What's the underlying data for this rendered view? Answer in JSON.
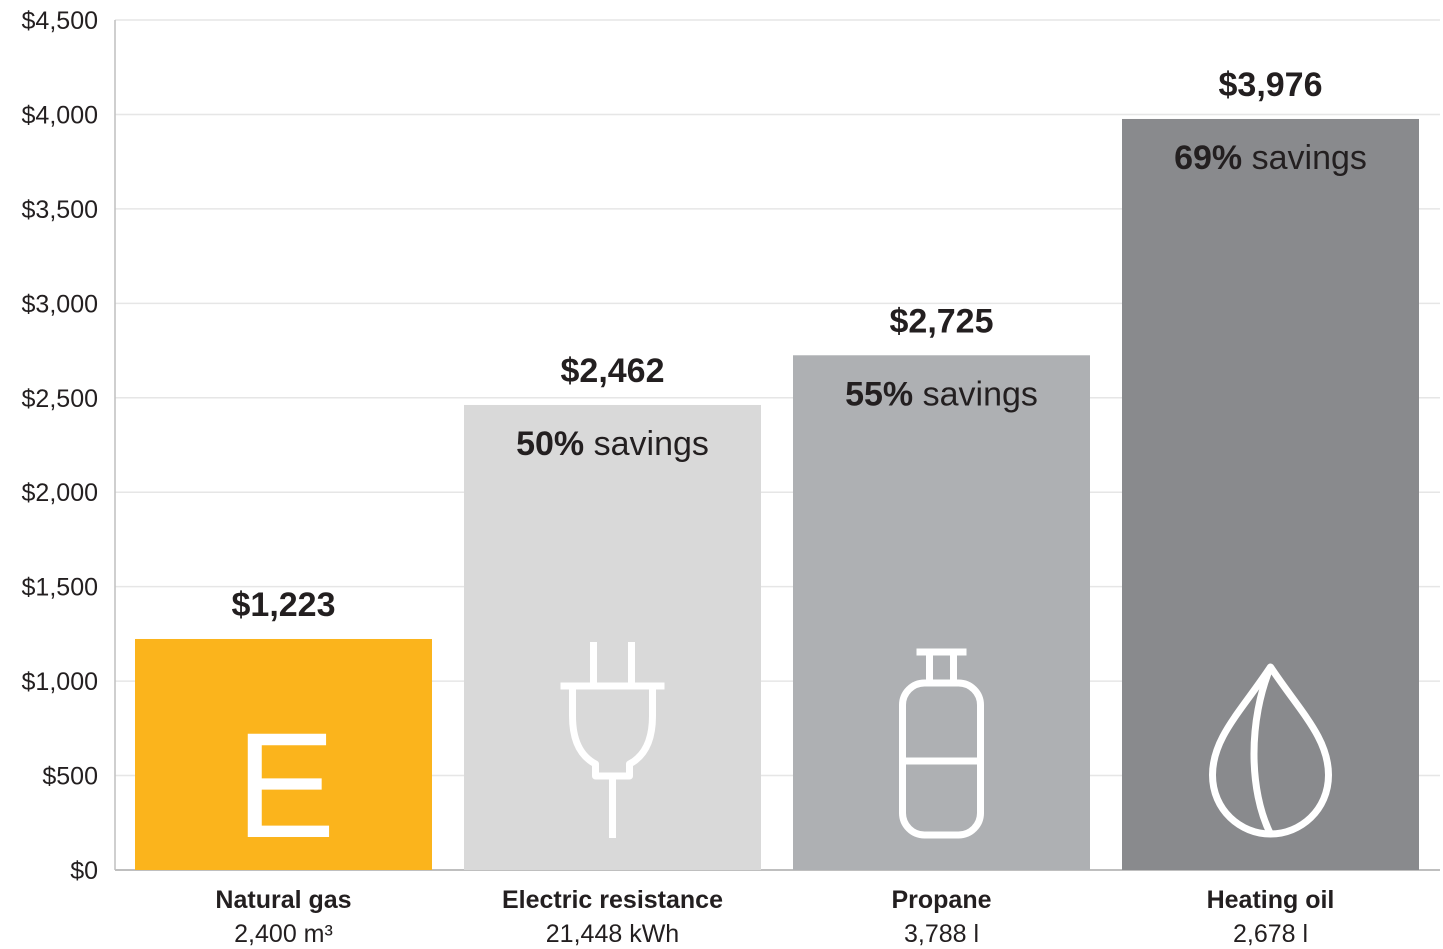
{
  "chart_data": {
    "type": "bar",
    "categories": [
      "Natural gas",
      "Electric resistance",
      "Propane",
      "Heating oil"
    ],
    "sublabels": [
      "2,400 m³",
      "21,448 kWh",
      "3,788 l",
      "2,678 l"
    ],
    "values": [
      1223,
      2462,
      2725,
      3976
    ],
    "value_labels": [
      "$1,223",
      "$2,462",
      "$2,725",
      "$3,976"
    ],
    "savings": [
      null,
      {
        "percent": "50%",
        "word": "savings"
      },
      {
        "percent": "55%",
        "word": "savings"
      },
      {
        "percent": "69%",
        "word": "savings"
      }
    ],
    "colors": [
      "#fbb41c",
      "#d9d9d9",
      "#aeb0b3",
      "#898a8d"
    ],
    "icons": [
      "energy-e-icon",
      "electric-plug-icon",
      "propane-tank-icon",
      "oil-drop-icon"
    ],
    "icon_glyphs": [
      "E",
      null,
      null,
      null
    ],
    "ylim": [
      0,
      4500
    ],
    "yticks": [
      0,
      500,
      1000,
      1500,
      2000,
      2500,
      3000,
      3500,
      4000,
      4500
    ],
    "ytick_labels": [
      "$0",
      "$500",
      "$1,000",
      "$1,500",
      "$2,000",
      "$2,500",
      "$3,000",
      "$3,500",
      "$4,000",
      "$4,500"
    ],
    "grid": true,
    "title": "",
    "xlabel": "",
    "ylabel": ""
  }
}
